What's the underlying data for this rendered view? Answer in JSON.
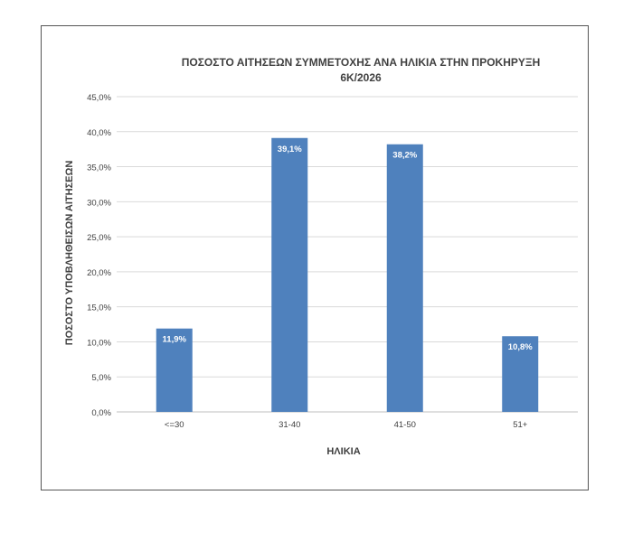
{
  "chart_data": {
    "type": "bar",
    "title_lines": [
      "ΠΟΣΟΣΤΟ ΑΙΤΗΣΕΩΝ ΣΥΜΜΕΤΟΧΗΣ ΑΝΑ ΗΛΙΚΙΑ ΣΤΗΝ ΠΡΟΚΗΡΥΞΗ",
      "6Κ/2026"
    ],
    "xlabel": "ΗΛΙΚΙΑ",
    "ylabel": "ΠΟΣΟΣΤΟ ΥΠΟΒΛΗΘΕΙΣΩΝ ΑΙΤΗΣΕΩΝ",
    "categories": [
      "<=30",
      "31-40",
      "41-50",
      "51+"
    ],
    "values": [
      11.9,
      39.1,
      38.2,
      10.8
    ],
    "data_labels": [
      "11,9%",
      "39,1%",
      "38,2%",
      "10,8%"
    ],
    "ylim": [
      0,
      45
    ],
    "y_ticks": [
      0,
      5,
      10,
      15,
      20,
      25,
      30,
      35,
      40,
      45
    ],
    "y_tick_labels": [
      "0,0%",
      "5,0%",
      "10,0%",
      "15,0%",
      "20,0%",
      "25,0%",
      "30,0%",
      "35,0%",
      "40,0%",
      "45,0%"
    ],
    "grid": true,
    "legend": "none",
    "colors": {
      "bar": "#4f81bd",
      "grid": "#d9d9d9",
      "text": "#404040",
      "title": "#404040",
      "data_label": "#ffffff"
    }
  }
}
